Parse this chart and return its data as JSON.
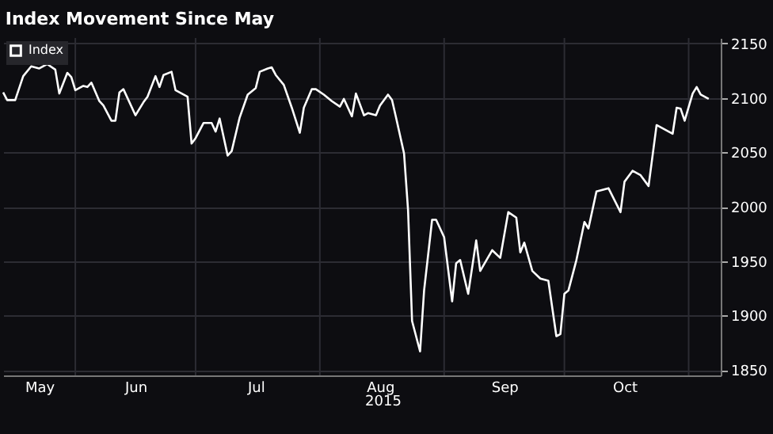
{
  "chart_data": {
    "type": "line",
    "title": "Index Movement Since May",
    "x": [
      "2015-05-14",
      "2015-05-15",
      "2015-05-17",
      "2015-05-19",
      "2015-05-21",
      "2015-05-23",
      "2015-05-25",
      "2015-05-27",
      "2015-05-28",
      "2015-05-30",
      "2015-05-31",
      "2015-06-01",
      "2015-06-03",
      "2015-06-04",
      "2015-06-05",
      "2015-06-07",
      "2015-06-08",
      "2015-06-10",
      "2015-06-11",
      "2015-06-12",
      "2015-06-13",
      "2015-06-16",
      "2015-06-18",
      "2015-06-19",
      "2015-06-21",
      "2015-06-22",
      "2015-06-23",
      "2015-06-25",
      "2015-06-26",
      "2015-06-28",
      "2015-06-29",
      "2015-06-30",
      "2015-07-01",
      "2015-07-03",
      "2015-07-05",
      "2015-07-06",
      "2015-07-07",
      "2015-07-09",
      "2015-07-10",
      "2015-07-12",
      "2015-07-14",
      "2015-07-16",
      "2015-07-17",
      "2015-07-19",
      "2015-07-20",
      "2015-07-21",
      "2015-07-23",
      "2015-07-25",
      "2015-07-27",
      "2015-07-28",
      "2015-07-30",
      "2015-07-31",
      "2015-08-02",
      "2015-08-04",
      "2015-08-06",
      "2015-08-07",
      "2015-08-09",
      "2015-08-10",
      "2015-08-12",
      "2015-08-13",
      "2015-08-15",
      "2015-08-16",
      "2015-08-18",
      "2015-08-19",
      "2015-08-20",
      "2015-08-22",
      "2015-08-23",
      "2015-08-24",
      "2015-08-26",
      "2015-08-27",
      "2015-08-29",
      "2015-08-30",
      "2015-09-01",
      "2015-09-03",
      "2015-09-04",
      "2015-09-05",
      "2015-09-07",
      "2015-09-09",
      "2015-09-10",
      "2015-09-13",
      "2015-09-15",
      "2015-09-17",
      "2015-09-19",
      "2015-09-20",
      "2015-09-21",
      "2015-09-23",
      "2015-09-25",
      "2015-09-27",
      "2015-09-29",
      "2015-09-30",
      "2015-10-01",
      "2015-10-02",
      "2015-10-04",
      "2015-10-06",
      "2015-10-07",
      "2015-10-09",
      "2015-10-12",
      "2015-10-15",
      "2015-10-16",
      "2015-10-18",
      "2015-10-20",
      "2015-10-22",
      "2015-10-24",
      "2015-10-28",
      "2015-10-29",
      "2015-10-30",
      "2015-10-31",
      "2015-11-02",
      "2015-11-03",
      "2015-11-04",
      "2015-11-06"
    ],
    "series": [
      {
        "name": "Index",
        "color": "#ffffff",
        "values": [
          2105,
          2098,
          2098,
          2120,
          2129,
          2127,
          2131,
          2126,
          2104,
          2123,
          2119,
          2107,
          2111,
          2110,
          2114,
          2097,
          2093,
          2079,
          2079,
          2105,
          2108,
          2084,
          2096,
          2101,
          2120,
          2110,
          2121,
          2124,
          2107,
          2103,
          2101,
          2058,
          2063,
          2077,
          2077,
          2069,
          2081,
          2047,
          2051,
          2082,
          2103,
          2109,
          2124,
          2127,
          2128,
          2121,
          2112,
          2091,
          2068,
          2091,
          2108,
          2108,
          2103,
          2097,
          2092,
          2099,
          2083,
          2104,
          2084,
          2086,
          2084,
          2093,
          2103,
          2098,
          2082,
          2049,
          1997,
          1895,
          1867,
          1923,
          1988,
          1988,
          1972,
          1913,
          1948,
          1951,
          1920,
          1969,
          1941,
          1960,
          1953,
          1995,
          1990,
          1958,
          1967,
          1941,
          1934,
          1932,
          1881,
          1883,
          1920,
          1923,
          1951,
          1986,
          1980,
          2014,
          2017,
          1995,
          2023,
          2033,
          2029,
          2019,
          2075,
          2067,
          2091,
          2090,
          2079,
          2104,
          2110,
          2103,
          2099
        ]
      }
    ],
    "xlim": [
      "2015-05-14",
      "2015-11-09"
    ],
    "xticks": [
      {
        "value": "2015-05-23",
        "label": "May"
      },
      {
        "value": "2015-06-01",
        "label": null
      },
      {
        "value": "2015-06-16",
        "label": "Jun"
      },
      {
        "value": "2015-07-01",
        "label": null
      },
      {
        "value": "2015-07-16",
        "label": "Jul"
      },
      {
        "value": "2015-08-01",
        "label": null
      },
      {
        "value": "2015-08-16",
        "label": "Aug"
      },
      {
        "value": "2015-09-01",
        "label": null
      },
      {
        "value": "2015-09-16",
        "label": "Sep"
      },
      {
        "value": "2015-10-01",
        "label": null
      },
      {
        "value": "2015-10-16",
        "label": "Oct"
      },
      {
        "value": "2015-11-01",
        "label": null
      }
    ],
    "ylim": [
      1845,
      2155
    ],
    "yticks": [
      1850,
      1900,
      1950,
      2000,
      2050,
      2100,
      2150
    ],
    "annotations": [
      "2015"
    ],
    "grid": true,
    "legend": "top left",
    "line_style": "solid",
    "marker": "none"
  }
}
